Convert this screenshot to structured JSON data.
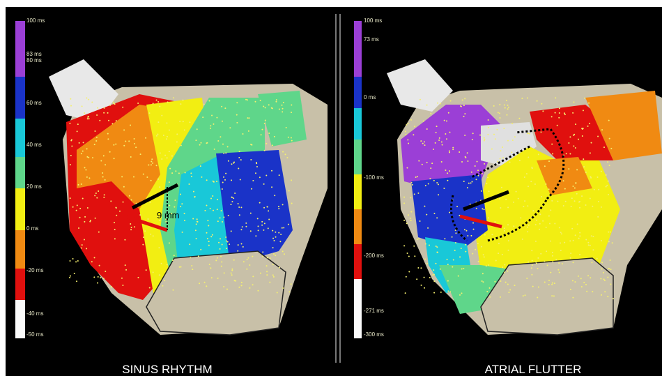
{
  "panels": [
    {
      "caption": "SINUS RHYTHM",
      "scale_labels": [
        "100 ms",
        "83 ms",
        "80 ms",
        "60 ms",
        "40 ms",
        "20 ms",
        "0 ms",
        "-20 ms",
        "-40 ms",
        "-50 ms"
      ],
      "annotation": "9 mm"
    },
    {
      "caption": "ATRIAL FLUTTER",
      "scale_labels": [
        "100 ms",
        "73 ms",
        "0 ms",
        "-100 ms",
        "-200 ms",
        "-271 ms",
        "-300 ms"
      ]
    }
  ]
}
